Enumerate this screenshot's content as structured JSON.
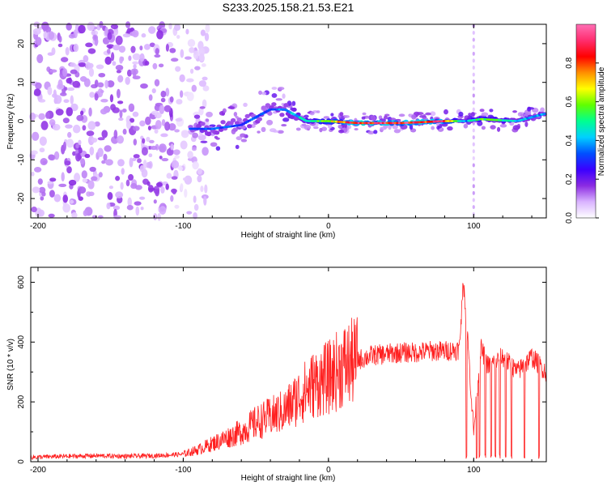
{
  "figure_title": "S233.2025.158.21.53.E21",
  "chart_data": [
    {
      "type": "heatmap",
      "title": "S233.2025.158.21.53.E21",
      "xlabel": "Height of straight line (km)",
      "ylabel": "Frequency (Hz)",
      "xlim": [
        -205,
        150
      ],
      "ylim": [
        -25,
        25
      ],
      "x_ticks": [
        "-200",
        "-100",
        "0",
        "100"
      ],
      "y_ticks": [
        "-20",
        "-10",
        "0",
        "10",
        "20"
      ],
      "colorbar": {
        "label": "Normalized spectral amplitude",
        "range": [
          0,
          1
        ],
        "ticks": [
          "0.0",
          "0.2",
          "0.4",
          "0.6",
          "0.8"
        ],
        "colors": [
          "#ffffff",
          "#d9b3ff",
          "#8b2be2",
          "#3a00ff",
          "#0050ff",
          "#00d0ff",
          "#00ff90",
          "#60ff00",
          "#ffff00",
          "#ff9000",
          "#ff0000",
          "#ff2d6e",
          "#ff6fb5"
        ]
      },
      "features": {
        "noise_region_x": [
          -205,
          -95
        ],
        "signal_track": [
          {
            "x": -95,
            "y": -2,
            "amp": 0.35
          },
          {
            "x": -80,
            "y": -2,
            "amp": 0.35
          },
          {
            "x": -60,
            "y": -1,
            "amp": 0.35
          },
          {
            "x": -40,
            "y": 3,
            "amp": 0.35
          },
          {
            "x": -30,
            "y": 3,
            "amp": 0.4
          },
          {
            "x": -15,
            "y": 0,
            "amp": 0.5
          },
          {
            "x": 0,
            "y": 0,
            "amp": 0.7
          },
          {
            "x": 20,
            "y": -0.5,
            "amp": 0.95
          },
          {
            "x": 50,
            "y": -0.5,
            "amp": 0.95
          },
          {
            "x": 80,
            "y": 0,
            "amp": 0.9
          },
          {
            "x": 95,
            "y": 0,
            "amp": 0.4
          },
          {
            "x": 105,
            "y": 0.5,
            "amp": 0.65
          },
          {
            "x": 130,
            "y": 0,
            "amp": 0.45
          },
          {
            "x": 150,
            "y": 2,
            "amp": 0.4
          }
        ],
        "vertical_line_x": 100
      }
    },
    {
      "type": "line",
      "xlabel": "Height of straight line (km)",
      "ylabel": "SNR (10 * v/v)",
      "xlim": [
        -205,
        150
      ],
      "ylim": [
        0,
        650
      ],
      "x_ticks": [
        "-200",
        "-100",
        "0",
        "100"
      ],
      "y_ticks": [
        "0",
        "200",
        "400",
        "600"
      ],
      "color": "#ff2020",
      "x": [
        -205,
        -180,
        -160,
        -140,
        -120,
        -100,
        -90,
        -80,
        -70,
        -60,
        -50,
        -40,
        -30,
        -20,
        -10,
        0,
        10,
        20,
        30,
        40,
        50,
        60,
        70,
        80,
        90,
        93,
        96,
        100,
        105,
        110,
        120,
        130,
        140,
        150
      ],
      "y": [
        15,
        18,
        20,
        18,
        20,
        25,
        40,
        60,
        80,
        100,
        130,
        150,
        170,
        220,
        260,
        280,
        320,
        340,
        355,
        360,
        365,
        365,
        370,
        370,
        375,
        600,
        400,
        100,
        380,
        320,
        350,
        300,
        350,
        300
      ],
      "dropouts_x": [
        95,
        102,
        104,
        108,
        112,
        115,
        118,
        122,
        126,
        135,
        145
      ]
    }
  ]
}
